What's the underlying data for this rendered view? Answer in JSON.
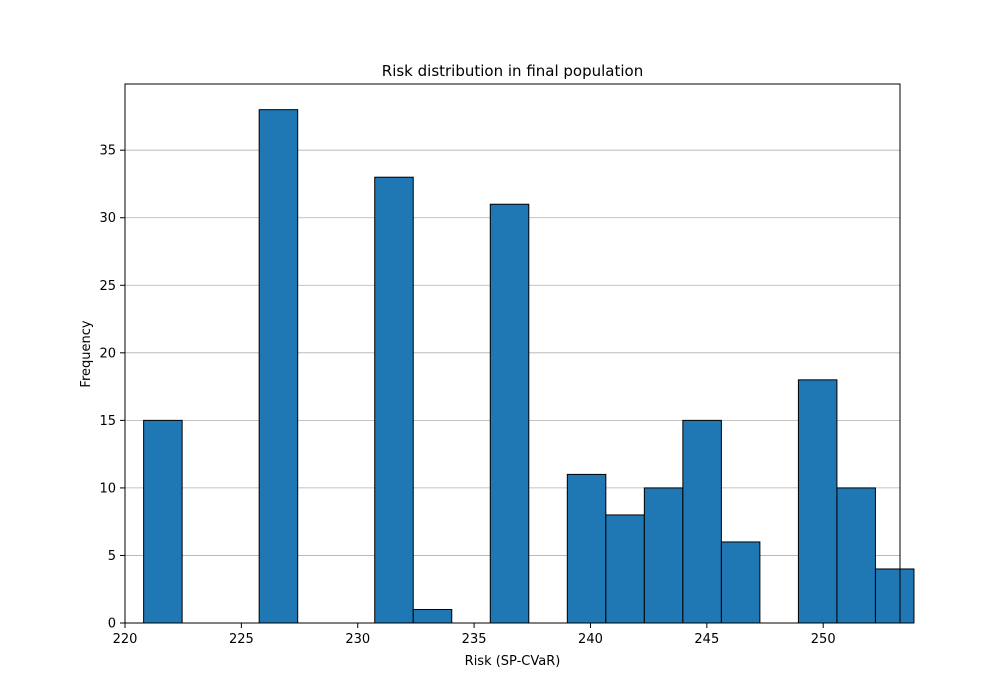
{
  "chart_data": {
    "type": "bar",
    "title": "Risk distribution in final population",
    "xlabel": "Risk (SP-CVaR)",
    "ylabel": "Frequency",
    "xlim": [
      220.0,
      253.3
    ],
    "ylim": [
      0,
      39.9
    ],
    "xticks": [
      220,
      225,
      230,
      235,
      240,
      245,
      250
    ],
    "yticks": [
      0,
      5,
      10,
      15,
      20,
      25,
      30,
      35
    ],
    "bin_width": 1.655,
    "bins": [
      {
        "start": 220.8,
        "value": 15
      },
      {
        "start": 222.455,
        "value": 0
      },
      {
        "start": 224.11,
        "value": 0
      },
      {
        "start": 225.765,
        "value": 38
      },
      {
        "start": 227.42,
        "value": 0
      },
      {
        "start": 229.075,
        "value": 0
      },
      {
        "start": 230.73,
        "value": 33
      },
      {
        "start": 232.385,
        "value": 1
      },
      {
        "start": 234.04,
        "value": 0
      },
      {
        "start": 235.695,
        "value": 31
      },
      {
        "start": 237.35,
        "value": 0
      },
      {
        "start": 239.005,
        "value": 11
      },
      {
        "start": 240.66,
        "value": 8
      },
      {
        "start": 242.315,
        "value": 10
      },
      {
        "start": 243.97,
        "value": 15
      },
      {
        "start": 245.625,
        "value": 6
      },
      {
        "start": 247.28,
        "value": 0
      },
      {
        "start": 248.935,
        "value": 18
      },
      {
        "start": 250.59,
        "value": 10
      },
      {
        "start": 252.245,
        "value": 4
      }
    ],
    "grid": {
      "y": true,
      "x": false
    },
    "colors": {
      "bar": "#1f77b4",
      "edge": "#000000",
      "grid": "#b0b0b0"
    }
  }
}
